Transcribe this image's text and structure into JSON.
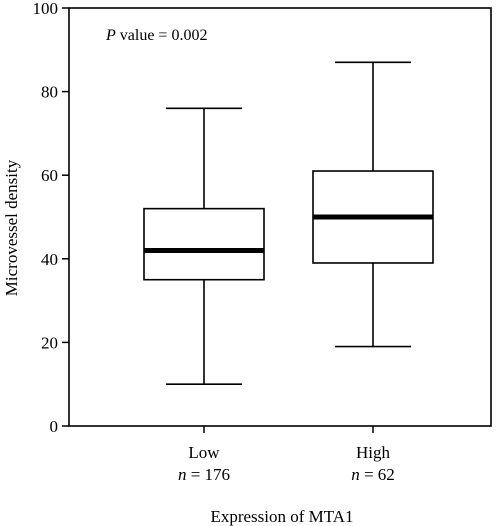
{
  "chart_data": {
    "type": "box",
    "annotation_italic": "P",
    "annotation_rest": " value = 0.002",
    "xlabel": "Expression of MTA1",
    "ylabel": "Microvessel density",
    "ylim": [
      0,
      100
    ],
    "yticks": [
      "0",
      "20",
      "40",
      "60",
      "80",
      "100"
    ],
    "grid": false,
    "categories": [
      {
        "label": "Low",
        "n_prefix": "n",
        "n_rest": " = 176",
        "min": 10,
        "q1": 35,
        "median": 42,
        "q3": 52,
        "max": 76
      },
      {
        "label": "High",
        "n_prefix": "n",
        "n_rest": " = 62",
        "min": 19,
        "q1": 39,
        "median": 50,
        "q3": 61,
        "max": 87
      }
    ]
  }
}
